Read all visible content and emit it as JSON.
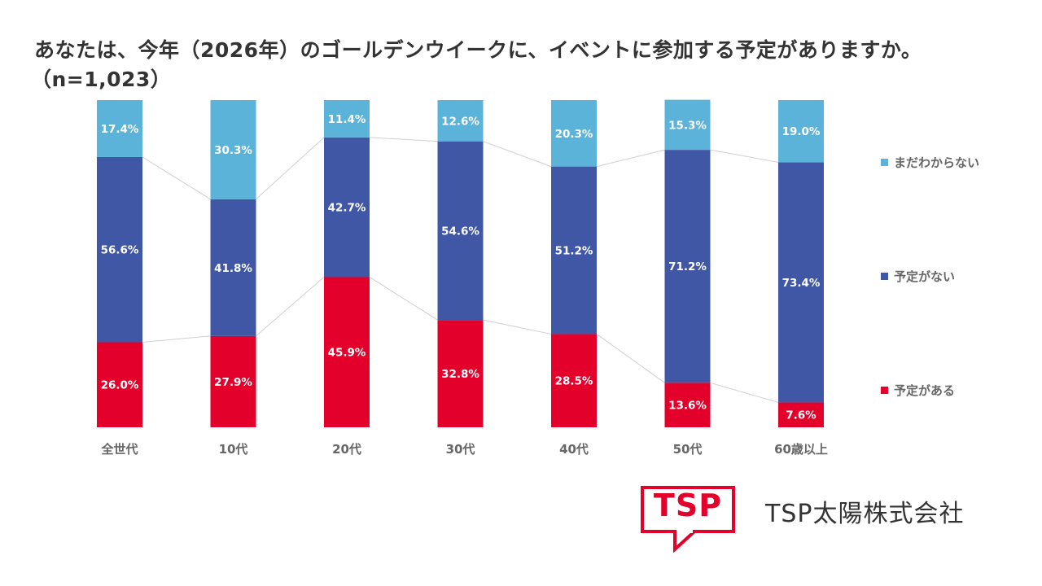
{
  "title": {
    "line1": "あなたは、今年（2026年）のゴールデンウイークに、イベントに参加する予定がありますか。",
    "line2": "（n=1,023）"
  },
  "colors": {
    "unknown": "#5cb3da",
    "no_plan": "#3f57a5",
    "has_plan": "#e3002a",
    "connector": "#d0d0d0"
  },
  "chart_data": {
    "type": "bar",
    "stacked": true,
    "percent_stacked": true,
    "title": "あなたは、今年（2026年）のゴールデンウイークに、イベントに参加する予定がありますか。（n=1,023）",
    "xlabel": "",
    "ylabel": "",
    "ylim": [
      0,
      100
    ],
    "grid": false,
    "legend_position": "right",
    "categories": [
      "全世代",
      "10代",
      "20代",
      "30代",
      "40代",
      "50代",
      "60歳以上"
    ],
    "series": [
      {
        "name": "予定がある",
        "key": "has_plan",
        "values": [
          26.0,
          27.9,
          45.9,
          32.8,
          28.5,
          13.6,
          7.6
        ]
      },
      {
        "name": "予定がない",
        "key": "no_plan",
        "values": [
          56.6,
          41.8,
          42.7,
          54.6,
          51.2,
          71.2,
          73.4
        ]
      },
      {
        "name": "まだわからない",
        "key": "unknown",
        "values": [
          17.4,
          30.3,
          11.4,
          12.6,
          20.3,
          15.3,
          19.0
        ]
      }
    ],
    "series_lines": true
  },
  "legend": [
    {
      "label": "まだわからない",
      "key": "unknown"
    },
    {
      "label": "予定がない",
      "key": "no_plan"
    },
    {
      "label": "予定がある",
      "key": "has_plan"
    }
  ],
  "logo": {
    "mark_text": "TSP",
    "company_name": "TSP太陽株式会社"
  }
}
